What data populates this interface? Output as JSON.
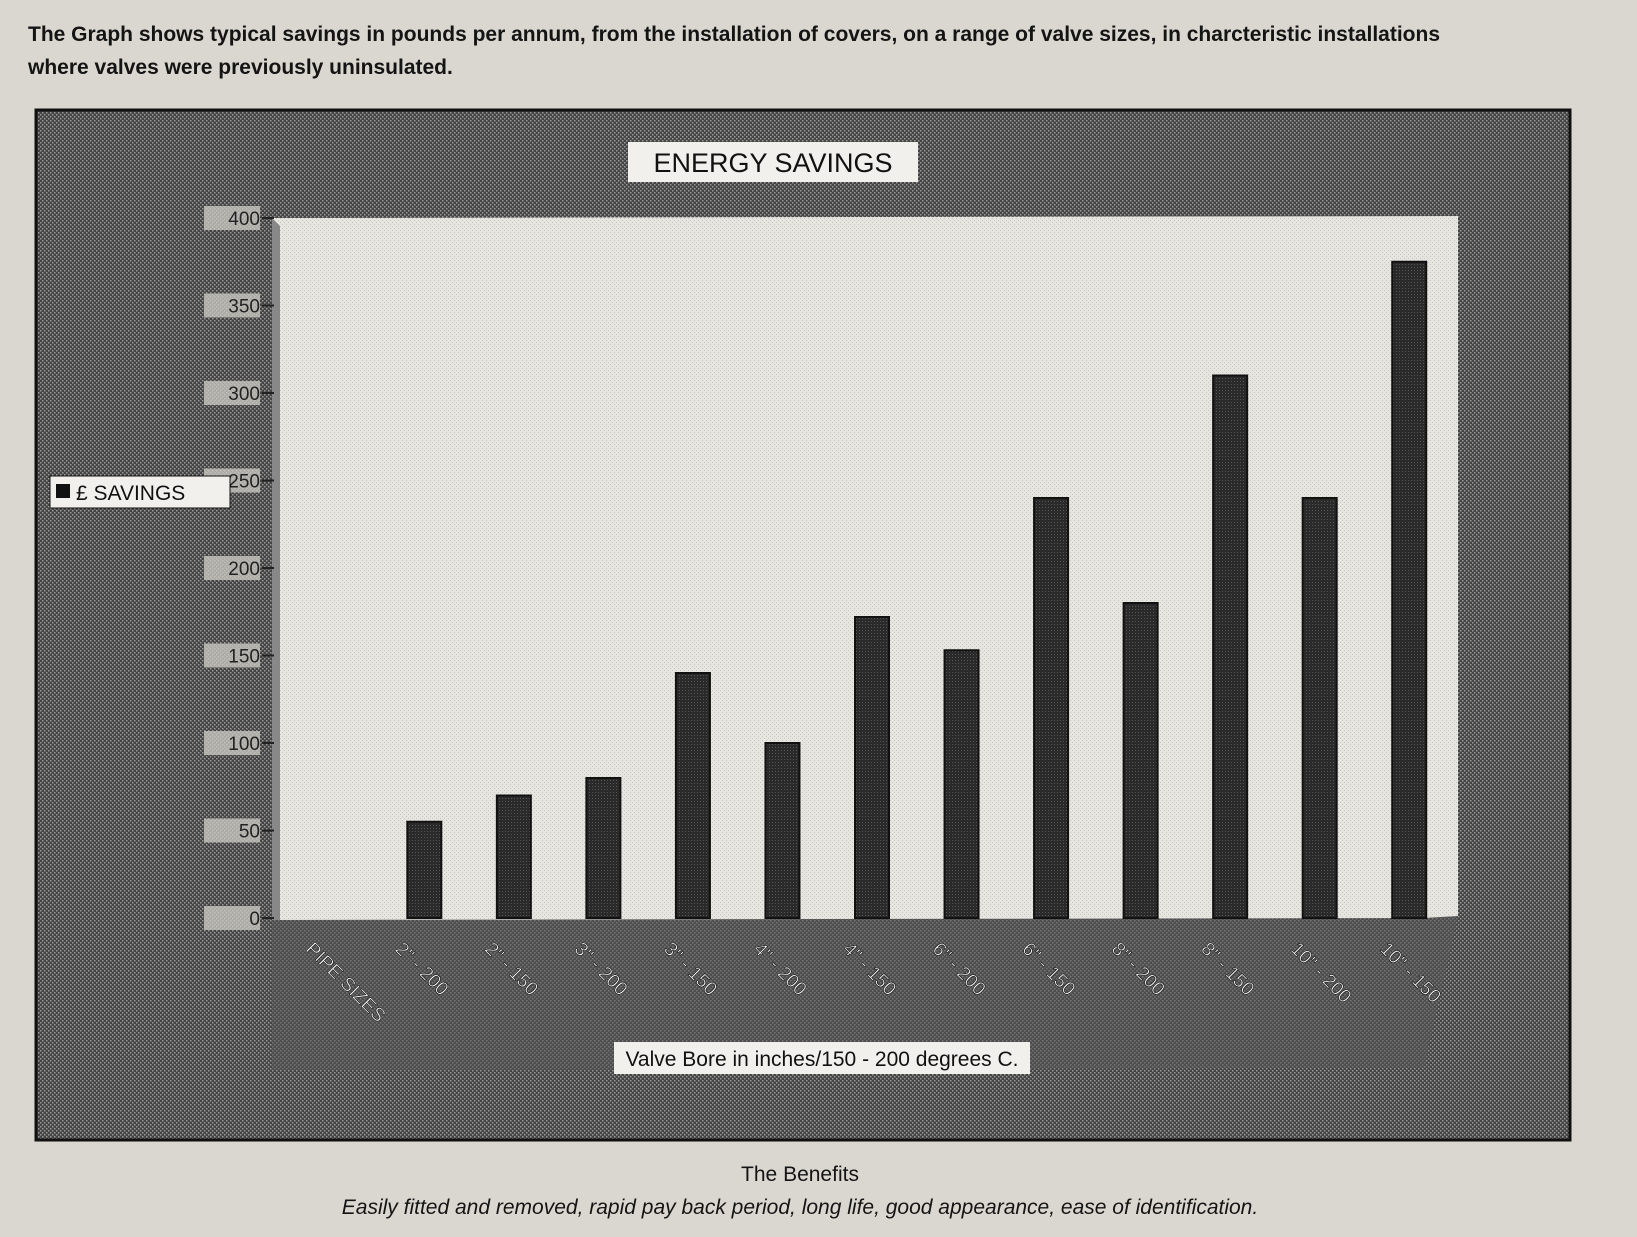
{
  "intro": {
    "line1": "The Graph shows typical savings in pounds per annum, from the installation of covers, on a range of valve sizes, in charcteristic installations",
    "line2": "where valves were previously uninsulated."
  },
  "chart_data": {
    "type": "bar",
    "title": "ENERGY SAVINGS",
    "xlabel": "Valve Bore in inches/150 - 200 degrees C.",
    "ylabel": "",
    "ylim": [
      0,
      400
    ],
    "yticks": [
      0,
      50,
      100,
      150,
      200,
      250,
      300,
      350,
      400
    ],
    "legend": {
      "label": "£ SAVINGS",
      "placement": "left"
    },
    "grid": false,
    "categories": [
      "PIPE SIZES",
      "2\" - 200",
      "2\" - 150",
      "3\" - 200",
      "3\" - 150",
      "4\" - 200",
      "4\" - 150",
      "6\" - 200",
      "6\" - 150",
      "8\" - 200",
      "8\" - 150",
      "10\" - 200",
      "10\" - 150"
    ],
    "series": [
      {
        "name": "£ SAVINGS",
        "values": [
          null,
          55,
          70,
          80,
          140,
          100,
          172,
          153,
          240,
          180,
          310,
          240,
          375
        ]
      }
    ]
  },
  "footer": {
    "heading": "The Benefits",
    "text": "Easily fitted and removed, rapid pay back period, long life, good appearance, ease of identification."
  },
  "colors": {
    "page": "#d9d7cf",
    "frame_dark": "#3c3c3c",
    "plot_bg": "#ebe9e3",
    "bar": "#2e2e2e",
    "label_box": "#f1f0ec"
  }
}
